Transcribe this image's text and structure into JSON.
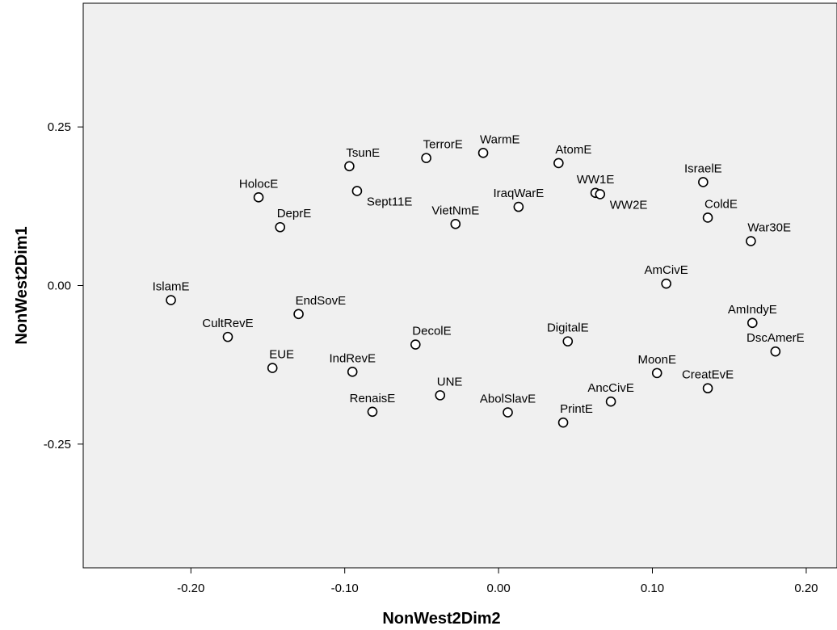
{
  "chart_data": {
    "type": "scatter",
    "title": "",
    "xlabel": "NonWest2Dim2",
    "ylabel": "NonWest2Dim1",
    "xlim": [
      -0.27,
      0.22
    ],
    "ylim": [
      -0.445,
      0.445
    ],
    "x_ticks": [
      -0.2,
      -0.1,
      0.0,
      0.1,
      0.2
    ],
    "x_tick_labels": [
      "-0.20",
      "-0.10",
      "0.00",
      "0.10",
      "0.20"
    ],
    "y_ticks": [
      0.25,
      0.0,
      -0.25
    ],
    "y_tick_labels": [
      "0.25",
      "0.00",
      "-0.25"
    ],
    "grid": false,
    "legend": "none",
    "plot_background": "#f0f0f0",
    "marker": "open-circle",
    "points": [
      {
        "label": "IslamE",
        "x": -0.213,
        "y": -0.023,
        "label_pos": "above"
      },
      {
        "label": "CultRevE",
        "x": -0.176,
        "y": -0.081,
        "label_pos": "above"
      },
      {
        "label": "EUE",
        "x": -0.147,
        "y": -0.13,
        "label_pos": "above-right"
      },
      {
        "label": "HolocE",
        "x": -0.156,
        "y": 0.139,
        "label_pos": "above"
      },
      {
        "label": "DeprE",
        "x": -0.142,
        "y": 0.092,
        "label_pos": "above-right"
      },
      {
        "label": "EndSovE",
        "x": -0.13,
        "y": -0.045,
        "label_pos": "above-right"
      },
      {
        "label": "TsunE",
        "x": -0.097,
        "y": 0.188,
        "label_pos": "above-right"
      },
      {
        "label": "Sept11E",
        "x": -0.092,
        "y": 0.149,
        "label_pos": "below-right"
      },
      {
        "label": "IndRevE",
        "x": -0.095,
        "y": -0.136,
        "label_pos": "above"
      },
      {
        "label": "RenaisE",
        "x": -0.082,
        "y": -0.199,
        "label_pos": "above"
      },
      {
        "label": "TerrorE",
        "x": -0.047,
        "y": 0.201,
        "label_pos": "above-right"
      },
      {
        "label": "VietNmE",
        "x": -0.028,
        "y": 0.097,
        "label_pos": "above"
      },
      {
        "label": "DecolE",
        "x": -0.054,
        "y": -0.093,
        "label_pos": "above-right"
      },
      {
        "label": "UNE",
        "x": -0.038,
        "y": -0.173,
        "label_pos": "above-right"
      },
      {
        "label": "WarmE",
        "x": -0.01,
        "y": 0.209,
        "label_pos": "above-right"
      },
      {
        "label": "IraqWarE",
        "x": 0.013,
        "y": 0.124,
        "label_pos": "above"
      },
      {
        "label": "AbolSlavE",
        "x": 0.006,
        "y": -0.2,
        "label_pos": "above"
      },
      {
        "label": "AtomE",
        "x": 0.039,
        "y": 0.193,
        "label_pos": "above-right"
      },
      {
        "label": "PrintE",
        "x": 0.042,
        "y": -0.216,
        "label_pos": "above-right"
      },
      {
        "label": "DigitalE",
        "x": 0.045,
        "y": -0.088,
        "label_pos": "above"
      },
      {
        "label": "WW1E",
        "x": 0.063,
        "y": 0.146,
        "label_pos": "above"
      },
      {
        "label": "WW2E",
        "x": 0.066,
        "y": 0.144,
        "label_pos": "below-right"
      },
      {
        "label": "AncCivE",
        "x": 0.073,
        "y": -0.183,
        "label_pos": "above"
      },
      {
        "label": "MoonE",
        "x": 0.103,
        "y": -0.138,
        "label_pos": "above"
      },
      {
        "label": "AmCivE",
        "x": 0.109,
        "y": 0.003,
        "label_pos": "above"
      },
      {
        "label": "IsraelE",
        "x": 0.133,
        "y": 0.163,
        "label_pos": "above"
      },
      {
        "label": "ColdE",
        "x": 0.136,
        "y": 0.107,
        "label_pos": "above-right"
      },
      {
        "label": "CreatEvE",
        "x": 0.136,
        "y": -0.162,
        "label_pos": "above"
      },
      {
        "label": "War30E",
        "x": 0.164,
        "y": 0.07,
        "label_pos": "above-right"
      },
      {
        "label": "AmIndyE",
        "x": 0.165,
        "y": -0.059,
        "label_pos": "above"
      },
      {
        "label": "DscAmerE",
        "x": 0.18,
        "y": -0.104,
        "label_pos": "above"
      }
    ]
  }
}
